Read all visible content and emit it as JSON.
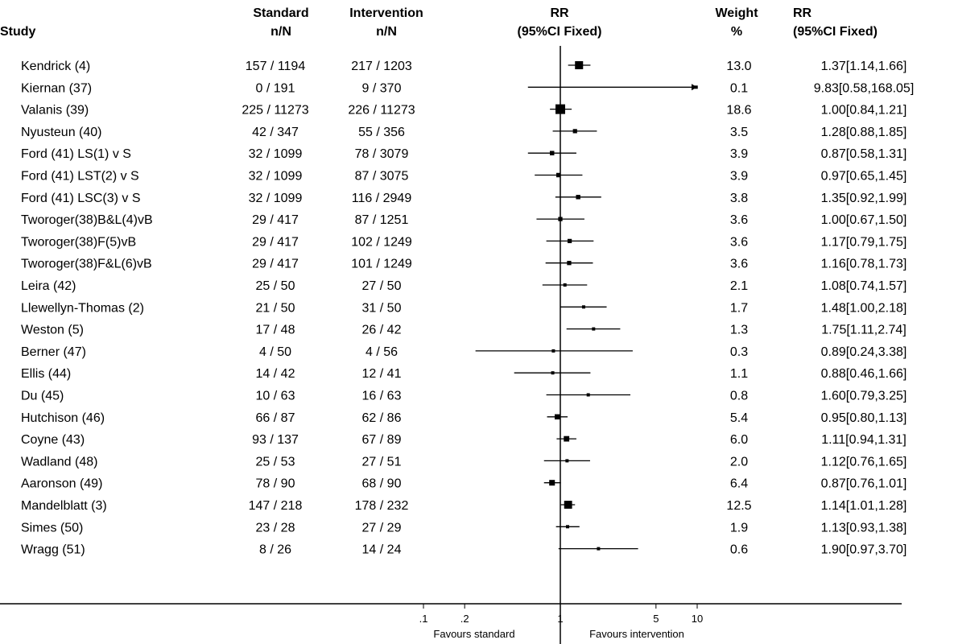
{
  "header": {
    "study": "Study",
    "standard": "Standard",
    "standard_sub": "n/N",
    "intervention": "Intervention",
    "intervention_sub": "n/N",
    "rr_plot": "RR",
    "rr_plot_sub": "(95%CI Fixed)",
    "weight": "Weight",
    "weight_sub": "%",
    "rr_text": "RR",
    "rr_text_sub": "(95%CI Fixed)"
  },
  "axis": {
    "tick_labels": [
      ".1",
      ".2",
      "1",
      "5",
      "10"
    ],
    "left_label": "Favours standard",
    "right_label": "Favours intervention"
  },
  "chart_data": {
    "type": "forest",
    "scale": "log",
    "xlim": [
      0.1,
      10
    ],
    "ticks": [
      0.1,
      0.2,
      1,
      5,
      10
    ],
    "null_line": 1,
    "rows": [
      {
        "study": "Kendrick (4)",
        "standard": "157 / 1194",
        "intervention": "217 / 1203",
        "weight": "13.0",
        "rr_text": "1.37[1.14,1.66]",
        "rr": 1.37,
        "lo": 1.14,
        "hi": 1.66
      },
      {
        "study": "Kiernan (37)",
        "standard": "0 / 191",
        "intervention": "9 / 370",
        "weight": "0.1",
        "rr_text": "9.83[0.58,168.05]",
        "rr": 9.83,
        "lo": 0.58,
        "hi": 168.05
      },
      {
        "study": "Valanis (39)",
        "standard": "225 / 11273",
        "intervention": "226 / 11273",
        "weight": "18.6",
        "rr_text": "1.00[0.84,1.21]",
        "rr": 1.0,
        "lo": 0.84,
        "hi": 1.21
      },
      {
        "study": "Nyusteun (40)",
        "standard": "42 / 347",
        "intervention": "55 / 356",
        "weight": "3.5",
        "rr_text": "1.28[0.88,1.85]",
        "rr": 1.28,
        "lo": 0.88,
        "hi": 1.85
      },
      {
        "study": "Ford (41) LS(1) v S",
        "standard": "32 / 1099",
        "intervention": "78 / 3079",
        "weight": "3.9",
        "rr_text": "0.87[0.58,1.31]",
        "rr": 0.87,
        "lo": 0.58,
        "hi": 1.31
      },
      {
        "study": "Ford (41) LST(2) v S",
        "standard": "32 / 1099",
        "intervention": "87 / 3075",
        "weight": "3.9",
        "rr_text": "0.97[0.65,1.45]",
        "rr": 0.97,
        "lo": 0.65,
        "hi": 1.45
      },
      {
        "study": "Ford (41) LSC(3) v S",
        "standard": "32 / 1099",
        "intervention": "116 / 2949",
        "weight": "3.8",
        "rr_text": "1.35[0.92,1.99]",
        "rr": 1.35,
        "lo": 0.92,
        "hi": 1.99
      },
      {
        "study": "Tworoger(38)B&L(4)vB",
        "standard": "29 / 417",
        "intervention": "87 / 1251",
        "weight": "3.6",
        "rr_text": "1.00[0.67,1.50]",
        "rr": 1.0,
        "lo": 0.67,
        "hi": 1.5
      },
      {
        "study": "Tworoger(38)F(5)vB",
        "standard": "29 / 417",
        "intervention": "102 / 1249",
        "weight": "3.6",
        "rr_text": "1.17[0.79,1.75]",
        "rr": 1.17,
        "lo": 0.79,
        "hi": 1.75
      },
      {
        "study": "Tworoger(38)F&L(6)vB",
        "standard": "29 / 417",
        "intervention": "101 / 1249",
        "weight": "3.6",
        "rr_text": "1.16[0.78,1.73]",
        "rr": 1.16,
        "lo": 0.78,
        "hi": 1.73
      },
      {
        "study": "Leira (42)",
        "standard": "25 / 50",
        "intervention": "27 / 50",
        "weight": "2.1",
        "rr_text": "1.08[0.74,1.57]",
        "rr": 1.08,
        "lo": 0.74,
        "hi": 1.57
      },
      {
        "study": "Llewellyn-Thomas (2)",
        "standard": "21 / 50",
        "intervention": "31 / 50",
        "weight": "1.7",
        "rr_text": "1.48[1.00,2.18]",
        "rr": 1.48,
        "lo": 1.0,
        "hi": 2.18
      },
      {
        "study": "Weston (5)",
        "standard": "17 / 48",
        "intervention": "26 / 42",
        "weight": "1.3",
        "rr_text": "1.75[1.11,2.74]",
        "rr": 1.75,
        "lo": 1.11,
        "hi": 2.74
      },
      {
        "study": "Berner (47)",
        "standard": "4 / 50",
        "intervention": "4 / 56",
        "weight": "0.3",
        "rr_text": "0.89[0.24,3.38]",
        "rr": 0.89,
        "lo": 0.24,
        "hi": 3.38
      },
      {
        "study": "Ellis (44)",
        "standard": "14 / 42",
        "intervention": "12 / 41",
        "weight": "1.1",
        "rr_text": "0.88[0.46,1.66]",
        "rr": 0.88,
        "lo": 0.46,
        "hi": 1.66
      },
      {
        "study": "Du (45)",
        "standard": "10 / 63",
        "intervention": "16 / 63",
        "weight": "0.8",
        "rr_text": "1.60[0.79,3.25]",
        "rr": 1.6,
        "lo": 0.79,
        "hi": 3.25
      },
      {
        "study": "Hutchison (46)",
        "standard": "66 / 87",
        "intervention": "62 / 86",
        "weight": "5.4",
        "rr_text": "0.95[0.80,1.13]",
        "rr": 0.95,
        "lo": 0.8,
        "hi": 1.13
      },
      {
        "study": "Coyne (43)",
        "standard": "93 / 137",
        "intervention": "67 / 89",
        "weight": "6.0",
        "rr_text": "1.11[0.94,1.31]",
        "rr": 1.11,
        "lo": 0.94,
        "hi": 1.31
      },
      {
        "study": "Wadland (48)",
        "standard": "25 / 53",
        "intervention": "27 / 51",
        "weight": "2.0",
        "rr_text": "1.12[0.76,1.65]",
        "rr": 1.12,
        "lo": 0.76,
        "hi": 1.65
      },
      {
        "study": "Aaronson (49)",
        "standard": "78 / 90",
        "intervention": "68 / 90",
        "weight": "6.4",
        "rr_text": "0.87[0.76,1.01]",
        "rr": 0.87,
        "lo": 0.76,
        "hi": 1.01
      },
      {
        "study": "Mandelblatt (3)",
        "standard": "147 / 218",
        "intervention": "178 / 232",
        "weight": "12.5",
        "rr_text": "1.14[1.01,1.28]",
        "rr": 1.14,
        "lo": 1.01,
        "hi": 1.28
      },
      {
        "study": "Simes (50)",
        "standard": "23 / 28",
        "intervention": "27 / 29",
        "weight": "1.9",
        "rr_text": "1.13[0.93,1.38]",
        "rr": 1.13,
        "lo": 0.93,
        "hi": 1.38
      },
      {
        "study": "Wragg (51)",
        "standard": "8 / 26",
        "intervention": "14 / 24",
        "weight": "0.6",
        "rr_text": "1.90[0.97,3.70]",
        "rr": 1.9,
        "lo": 0.97,
        "hi": 3.7
      }
    ]
  }
}
